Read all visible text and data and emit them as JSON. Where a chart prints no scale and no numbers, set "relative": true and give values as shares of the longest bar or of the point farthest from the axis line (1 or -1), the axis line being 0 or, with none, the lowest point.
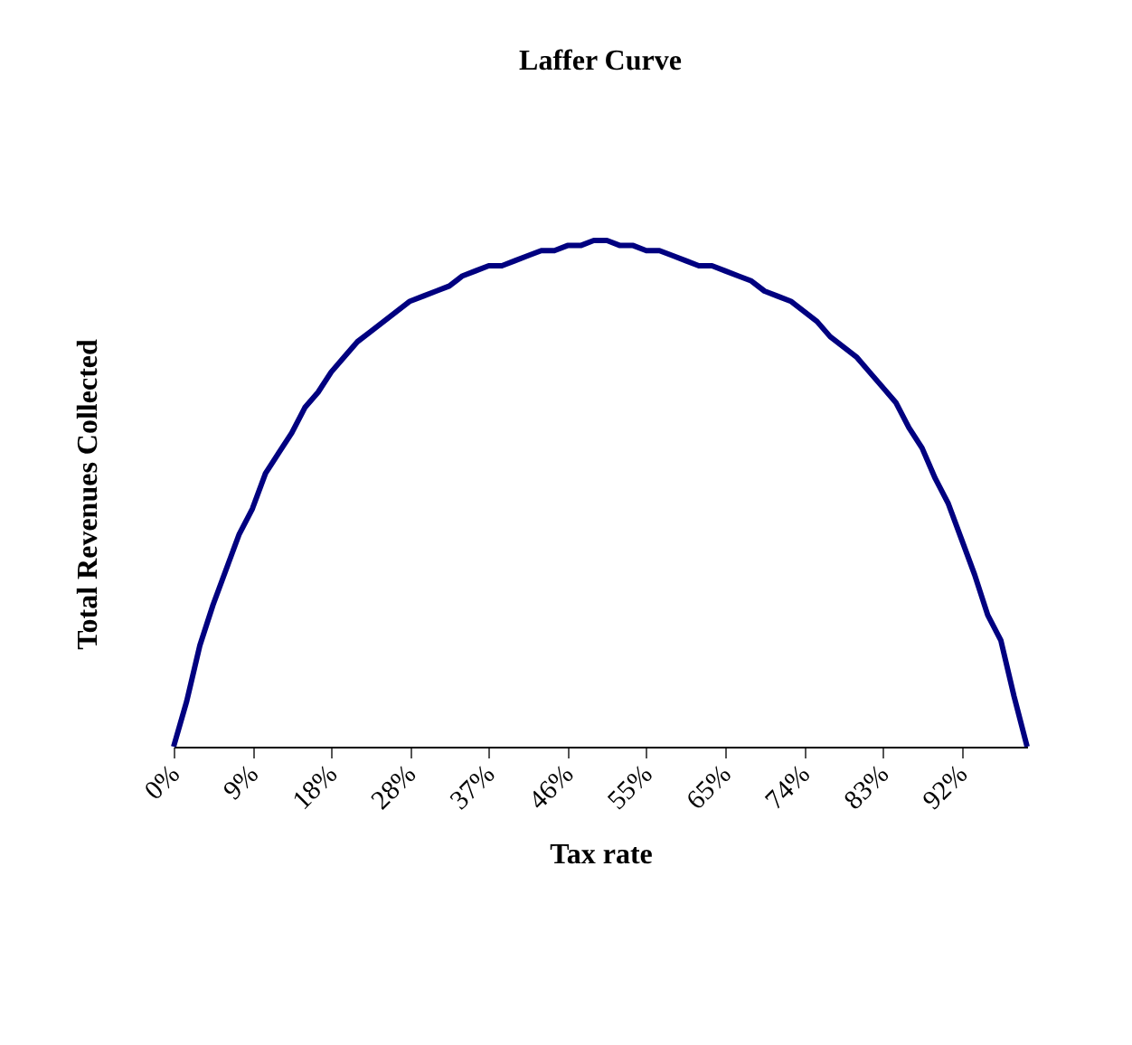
{
  "chart_data": {
    "type": "line",
    "title": "Laffer Curve",
    "xlabel": "Tax rate",
    "ylabel": "Total Revenues Collected",
    "relative": true,
    "categories": [
      "0%",
      null,
      null,
      null,
      null,
      null,
      "9%",
      null,
      null,
      null,
      null,
      null,
      "18%",
      null,
      null,
      null,
      null,
      null,
      "28%",
      null,
      null,
      null,
      null,
      null,
      "37%",
      null,
      null,
      null,
      null,
      null,
      "46%",
      null,
      null,
      null,
      null,
      null,
      "55%",
      null,
      null,
      null,
      null,
      null,
      "65%",
      null,
      null,
      null,
      null,
      null,
      "74%",
      null,
      null,
      null,
      null,
      null,
      "83%",
      null,
      null,
      null,
      null,
      null,
      "92%",
      null,
      null,
      null,
      null,
      null
    ],
    "series": [
      {
        "color": "#000080",
        "values": [
          0,
          0.09,
          0.2,
          0.28,
          0.35,
          0.42,
          0.47,
          0.54,
          0.58,
          0.62,
          0.67,
          0.7,
          0.74,
          0.77,
          0.8,
          0.82,
          0.84,
          0.86,
          0.88,
          0.89,
          0.9,
          0.91,
          0.93,
          0.94,
          0.95,
          0.95,
          0.96,
          0.97,
          0.98,
          0.98,
          0.99,
          0.99,
          1.0,
          1.0,
          0.99,
          0.99,
          0.98,
          0.98,
          0.97,
          0.96,
          0.95,
          0.95,
          0.94,
          0.93,
          0.92,
          0.9,
          0.89,
          0.88,
          0.86,
          0.84,
          0.81,
          0.79,
          0.77,
          0.74,
          0.71,
          0.68,
          0.63,
          0.59,
          0.53,
          0.48,
          0.41,
          0.34,
          0.26,
          0.21,
          0.1,
          0
        ]
      }
    ],
    "grid": false,
    "legend": false,
    "marker": "none",
    "line_style": "solid"
  }
}
